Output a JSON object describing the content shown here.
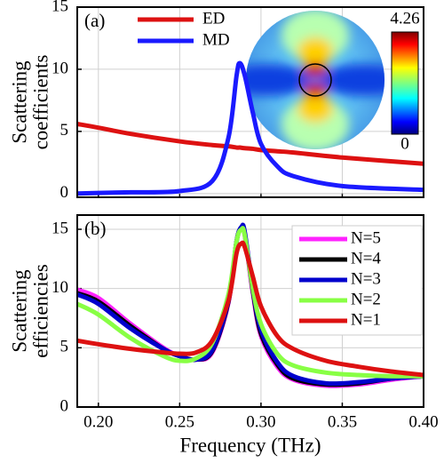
{
  "chart_data": [
    {
      "type": "line",
      "panel_label": "(a)",
      "ylabel": [
        "Scattering",
        "coefficients"
      ],
      "x": [
        0.187,
        0.2,
        0.22,
        0.25,
        0.27,
        0.28,
        0.285,
        0.287,
        0.29,
        0.295,
        0.3,
        0.31,
        0.32,
        0.35,
        0.4
      ],
      "series": [
        {
          "name": "ED",
          "color": "#dd1111",
          "values": [
            5.6,
            5.3,
            4.8,
            4.2,
            3.9,
            3.8,
            3.7,
            3.7,
            3.65,
            3.6,
            3.5,
            3.4,
            3.3,
            2.9,
            2.4
          ]
        },
        {
          "name": "MD",
          "color": "#1a1aff",
          "values": [
            0.0,
            0.05,
            0.1,
            0.2,
            1.0,
            4.5,
            9.5,
            10.5,
            9.5,
            6.5,
            4.0,
            2.2,
            1.4,
            0.6,
            0.3
          ]
        }
      ],
      "xlim": [
        0.187,
        0.4
      ],
      "xticks": [
        0.2,
        0.25,
        0.3,
        0.35,
        0.4
      ],
      "xtick_labels": false,
      "ylim": [
        -0.3,
        15
      ],
      "yticks": [
        0,
        5,
        10,
        15
      ],
      "grid": true,
      "legend": "upper center",
      "inset_colorbar": [
        0,
        4.26
      ]
    },
    {
      "type": "line",
      "panel_label": "(b)",
      "ylabel": [
        "Scattering",
        "efficiencies"
      ],
      "xlabel": "Frequency (THz)",
      "x": [
        0.187,
        0.2,
        0.22,
        0.24,
        0.25,
        0.26,
        0.27,
        0.28,
        0.285,
        0.288,
        0.29,
        0.295,
        0.3,
        0.31,
        0.32,
        0.34,
        0.36,
        0.38,
        0.4
      ],
      "series": [
        {
          "name": "N=5",
          "color": "#ff22ff",
          "values": [
            9.9,
            9.2,
            7.0,
            5.0,
            4.3,
            4.0,
            4.6,
            8.8,
            14,
            15,
            14.5,
            9.6,
            6.0,
            3.4,
            2.3,
            1.8,
            1.9,
            2.3,
            2.6
          ]
        },
        {
          "name": "N=4",
          "color": "#000000",
          "values": [
            9.6,
            8.9,
            6.8,
            4.9,
            4.3,
            4.0,
            4.7,
            8.9,
            14,
            15.1,
            14.6,
            9.8,
            6.2,
            3.6,
            2.4,
            1.9,
            2.0,
            2.4,
            2.6
          ]
        },
        {
          "name": "N=3",
          "color": "#0000cc",
          "values": [
            9.5,
            8.7,
            6.6,
            4.9,
            4.3,
            4.0,
            4.8,
            9.0,
            14,
            15.2,
            14.8,
            10,
            6.5,
            3.8,
            2.6,
            2.0,
            2.1,
            2.4,
            2.6
          ]
        },
        {
          "name": "N=2",
          "color": "#88ff44",
          "values": [
            8.7,
            7.8,
            5.8,
            4.3,
            3.9,
            4.1,
            5.4,
            9.5,
            14,
            15,
            14.5,
            10,
            7.0,
            4.5,
            3.5,
            2.9,
            2.7,
            2.6,
            2.6
          ]
        },
        {
          "name": "N=1",
          "color": "#dd1111",
          "values": [
            5.6,
            5.3,
            4.9,
            4.6,
            4.5,
            4.6,
            5.6,
            9.0,
            13,
            13.8,
            13.5,
            11,
            8.5,
            6.0,
            4.9,
            3.9,
            3.4,
            3.0,
            2.7
          ]
        }
      ],
      "xlim": [
        0.187,
        0.4
      ],
      "xticks": [
        {
          "value": 0.2,
          "label": "0.20"
        },
        0.25,
        {
          "value": 0.3,
          "label": "0.30"
        },
        0.35,
        {
          "value": 0.4,
          "label": "0.40"
        }
      ],
      "xtick_labels": true,
      "ylim": [
        0,
        16.2
      ],
      "yticks": [
        0,
        5,
        10,
        15
      ],
      "grid": true,
      "legend": "upper right"
    }
  ]
}
